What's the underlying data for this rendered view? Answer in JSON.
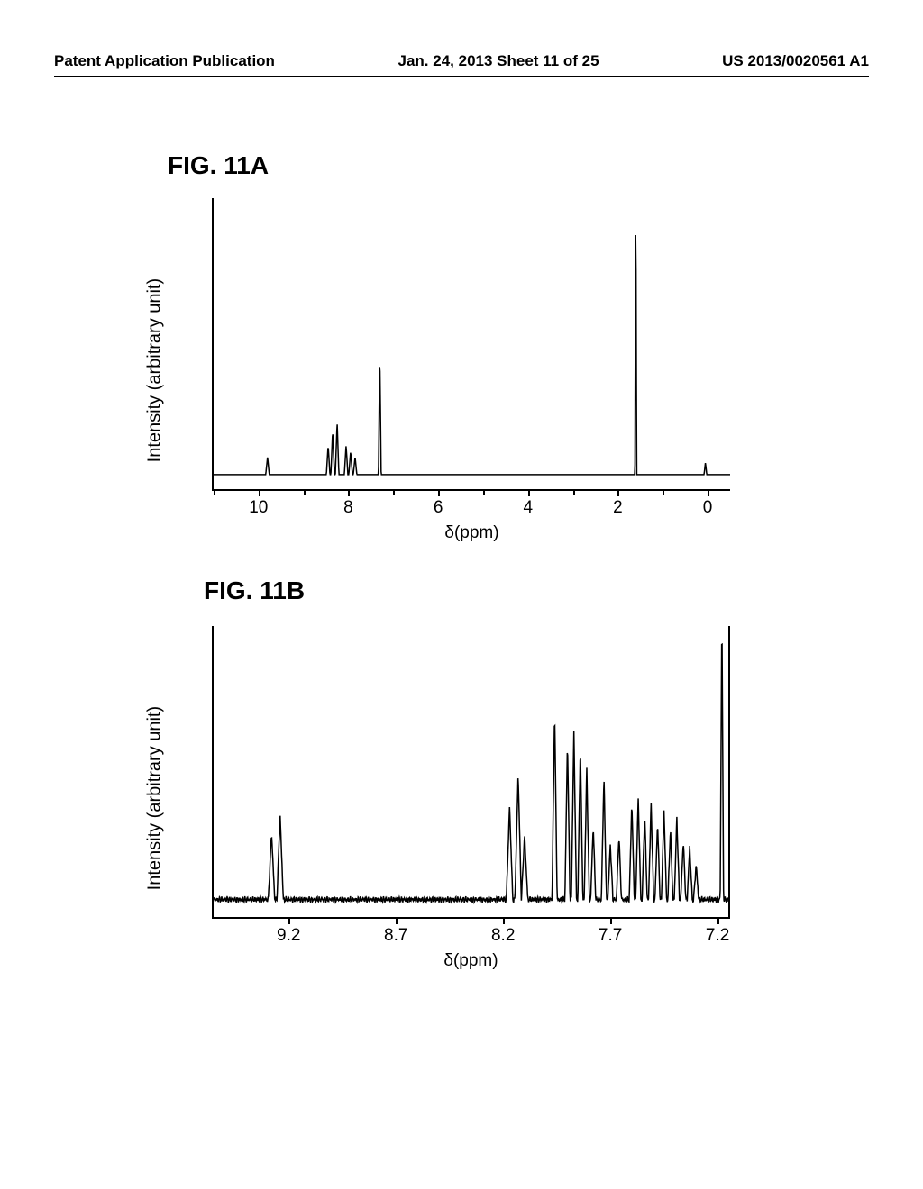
{
  "header": {
    "left": "Patent Application Publication",
    "center": "Jan. 24, 2013  Sheet 11 of 25",
    "right": "US 2013/0020561 A1"
  },
  "figA": {
    "label": "FIG. 11A",
    "type": "line",
    "ylabel": "Intensity (arbitrary unit)",
    "xlabel": "δ(ppm)",
    "xlim": [
      11,
      -0.5
    ],
    "xticks": [
      10,
      8,
      6,
      4,
      2,
      0
    ],
    "label_fontsize": 20,
    "tick_fontsize": 19,
    "line_color": "#000000",
    "line_width": 1.5,
    "background_color": "#ffffff",
    "axis_color": "#000000",
    "baseline_y": 0.05,
    "peaks": [
      {
        "x": 9.8,
        "h": 0.06,
        "w": 0.04
      },
      {
        "x": 8.45,
        "h": 0.1,
        "w": 0.04
      },
      {
        "x": 8.35,
        "h": 0.15,
        "w": 0.04
      },
      {
        "x": 8.25,
        "h": 0.18,
        "w": 0.04
      },
      {
        "x": 8.05,
        "h": 0.1,
        "w": 0.04
      },
      {
        "x": 7.95,
        "h": 0.08,
        "w": 0.04
      },
      {
        "x": 7.85,
        "h": 0.06,
        "w": 0.04
      },
      {
        "x": 7.3,
        "h": 0.42,
        "w": 0.03
      },
      {
        "x": 1.6,
        "h": 0.96,
        "w": 0.02
      },
      {
        "x": 0.05,
        "h": 0.04,
        "w": 0.03
      }
    ]
  },
  "figB": {
    "label": "FIG. 11B",
    "type": "line",
    "ylabel": "Intensity (arbitrary unit)",
    "xlabel": "δ(ppm)",
    "xlim": [
      9.55,
      7.15
    ],
    "xticks": [
      9.2,
      8.7,
      8.2,
      7.7,
      7.2
    ],
    "label_fontsize": 20,
    "tick_fontsize": 19,
    "line_color": "#000000",
    "line_width": 1.5,
    "background_color": "#ffffff",
    "axis_color": "#000000",
    "baseline_y": 0.06,
    "noise_amplitude": 0.012,
    "peaks": [
      {
        "x": 9.28,
        "h": 0.23,
        "w": 0.015
      },
      {
        "x": 9.24,
        "h": 0.29,
        "w": 0.015
      },
      {
        "x": 8.17,
        "h": 0.32,
        "w": 0.015
      },
      {
        "x": 8.13,
        "h": 0.43,
        "w": 0.015
      },
      {
        "x": 8.1,
        "h": 0.22,
        "w": 0.015
      },
      {
        "x": 7.96,
        "h": 0.65,
        "w": 0.012
      },
      {
        "x": 7.9,
        "h": 0.54,
        "w": 0.012
      },
      {
        "x": 7.87,
        "h": 0.58,
        "w": 0.012
      },
      {
        "x": 7.84,
        "h": 0.52,
        "w": 0.012
      },
      {
        "x": 7.81,
        "h": 0.45,
        "w": 0.012
      },
      {
        "x": 7.78,
        "h": 0.25,
        "w": 0.012
      },
      {
        "x": 7.73,
        "h": 0.42,
        "w": 0.012
      },
      {
        "x": 7.7,
        "h": 0.19,
        "w": 0.012
      },
      {
        "x": 7.66,
        "h": 0.22,
        "w": 0.012
      },
      {
        "x": 7.6,
        "h": 0.33,
        "w": 0.012
      },
      {
        "x": 7.57,
        "h": 0.35,
        "w": 0.012
      },
      {
        "x": 7.54,
        "h": 0.29,
        "w": 0.012
      },
      {
        "x": 7.51,
        "h": 0.33,
        "w": 0.012
      },
      {
        "x": 7.48,
        "h": 0.26,
        "w": 0.012
      },
      {
        "x": 7.45,
        "h": 0.31,
        "w": 0.012
      },
      {
        "x": 7.42,
        "h": 0.24,
        "w": 0.012
      },
      {
        "x": 7.39,
        "h": 0.28,
        "w": 0.012
      },
      {
        "x": 7.36,
        "h": 0.2,
        "w": 0.012
      },
      {
        "x": 7.33,
        "h": 0.18,
        "w": 0.012
      },
      {
        "x": 7.3,
        "h": 0.12,
        "w": 0.012
      },
      {
        "x": 7.18,
        "h": 0.98,
        "w": 0.008
      }
    ]
  }
}
